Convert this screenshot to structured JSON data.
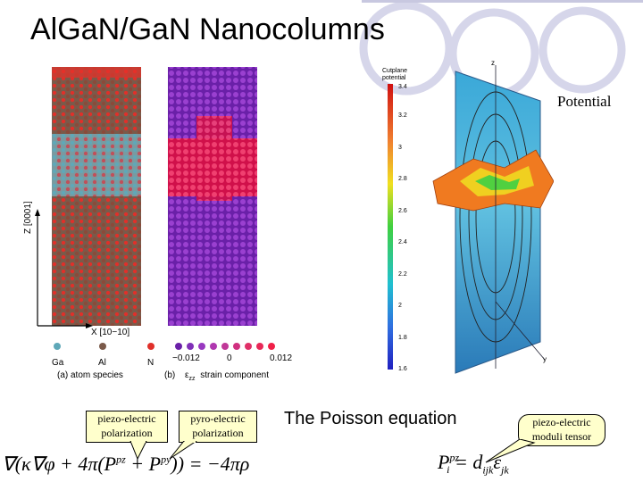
{
  "slide": {
    "title": "AlGaN/GaN Nanocolumns",
    "potential_label": "Potential",
    "poisson_label": "The Poisson equation"
  },
  "callouts": {
    "piezo": "piezo-electric polarization",
    "pyro": "pyro-electric polarization",
    "moduli": "piezo-electric moduli tensor"
  },
  "figure_left": {
    "z_axis": "Z [0001]",
    "x_axis": "X [10−10]",
    "species": [
      "Ga",
      "Al",
      "N"
    ],
    "strain_ticks": [
      "−0.012",
      "0",
      "0.012"
    ],
    "caption_a": "(a)   atom species",
    "caption_b_prefix": "(b)",
    "caption_b_eps": "ε",
    "caption_b_sub": "zz",
    "caption_b_suffix": "strain component",
    "colors": {
      "ga": "#5fa8b8",
      "al": "#7a5a4a",
      "n": "#e0302a",
      "strain_low": "#7b2fb8",
      "strain_high": "#e8305a"
    }
  },
  "figure_right": {
    "colorbar_title": "Cutplane potential",
    "colorbar_ticks": [
      "3.4",
      "3.2",
      "3",
      "2.8",
      "2.6",
      "2.4",
      "2.2",
      "2",
      "1.8",
      "1.6"
    ],
    "axis_z": "z",
    "axis_y": "y"
  },
  "equations": {
    "left": "∇(κ∇φ + 4π(P",
    "left_sup_pz": "pz",
    "left_mid": " + P",
    "left_sup_py": "py",
    "left_end": ")) = −4πρ",
    "right_P": "P",
    "right_sup": "pz",
    "right_sub": "i",
    "right_eq": " = d",
    "right_sub2": "ijk",
    "right_eps": "ε",
    "right_sub3": "jk"
  }
}
